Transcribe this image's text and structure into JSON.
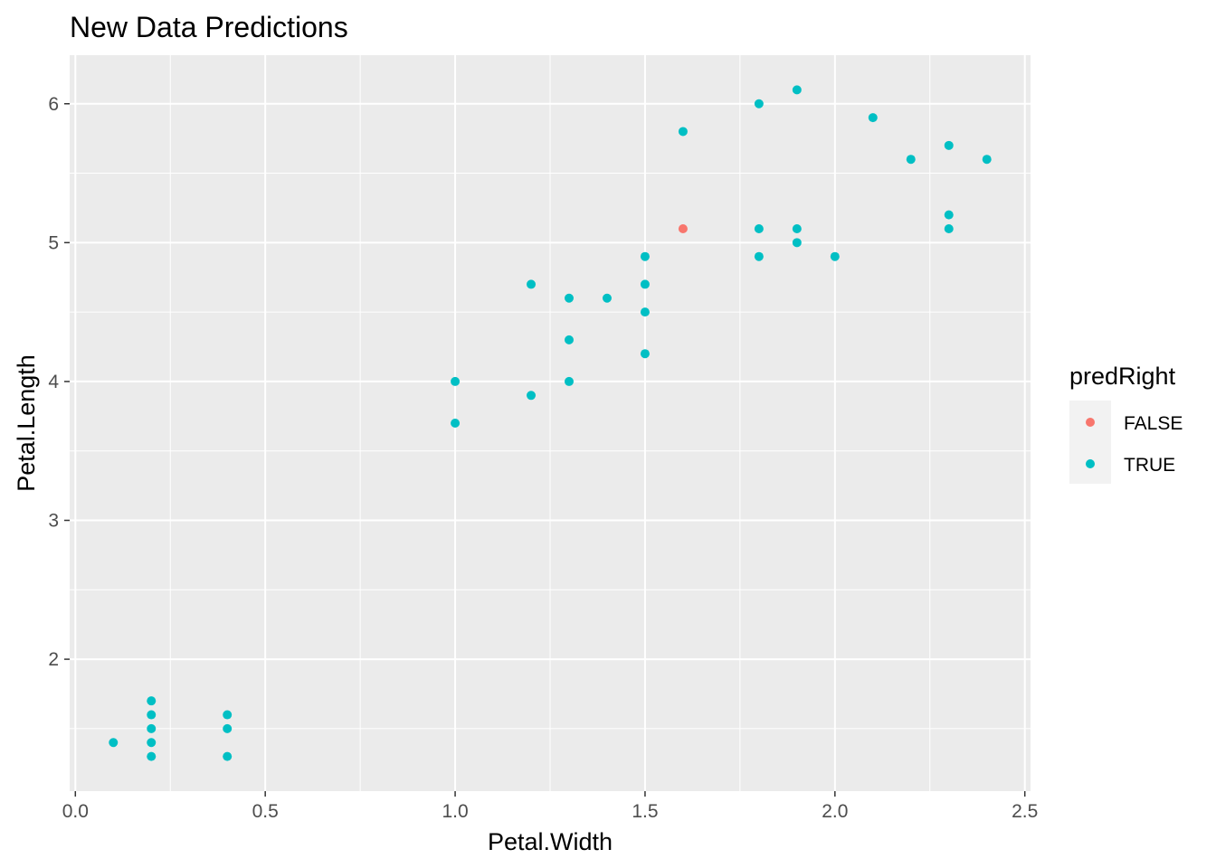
{
  "chart_data": {
    "type": "scatter",
    "title": "New Data Predictions",
    "xlabel": "Petal.Width",
    "ylabel": "Petal.Length",
    "xlim": [
      -0.015,
      2.515
    ],
    "ylim": [
      1.05,
      6.35
    ],
    "x_ticks": [
      "0.0",
      "0.5",
      "1.0",
      "1.5",
      "2.0",
      "2.5"
    ],
    "y_ticks": [
      "2",
      "3",
      "4",
      "5",
      "6"
    ],
    "grid": true,
    "legend": {
      "title": "predRight",
      "position": "right",
      "entries": [
        {
          "label": "FALSE",
          "color": "#f8766d"
        },
        {
          "label": "TRUE",
          "color": "#00bfc4"
        }
      ]
    },
    "series": [
      {
        "name": "FALSE",
        "color": "#f8766d",
        "points": [
          [
            1.6,
            5.1
          ]
        ]
      },
      {
        "name": "TRUE",
        "color": "#00bfc4",
        "points": [
          [
            0.1,
            1.4
          ],
          [
            0.2,
            1.7
          ],
          [
            0.2,
            1.6
          ],
          [
            0.2,
            1.5
          ],
          [
            0.2,
            1.4
          ],
          [
            0.2,
            1.3
          ],
          [
            0.4,
            1.6
          ],
          [
            0.4,
            1.5
          ],
          [
            0.4,
            1.3
          ],
          [
            1.0,
            4.0
          ],
          [
            1.0,
            3.7
          ],
          [
            1.2,
            4.7
          ],
          [
            1.2,
            3.9
          ],
          [
            1.3,
            4.6
          ],
          [
            1.3,
            4.3
          ],
          [
            1.3,
            4.0
          ],
          [
            1.4,
            4.6
          ],
          [
            1.5,
            4.9
          ],
          [
            1.5,
            4.7
          ],
          [
            1.5,
            4.5
          ],
          [
            1.5,
            4.2
          ],
          [
            1.6,
            5.8
          ],
          [
            1.8,
            6.0
          ],
          [
            1.8,
            5.1
          ],
          [
            1.8,
            4.9
          ],
          [
            1.9,
            6.1
          ],
          [
            1.9,
            5.1
          ],
          [
            1.9,
            5.0
          ],
          [
            2.0,
            4.9
          ],
          [
            2.1,
            5.9
          ],
          [
            2.2,
            5.6
          ],
          [
            2.3,
            5.7
          ],
          [
            2.3,
            5.2
          ],
          [
            2.3,
            5.1
          ],
          [
            2.4,
            5.6
          ]
        ]
      }
    ]
  }
}
